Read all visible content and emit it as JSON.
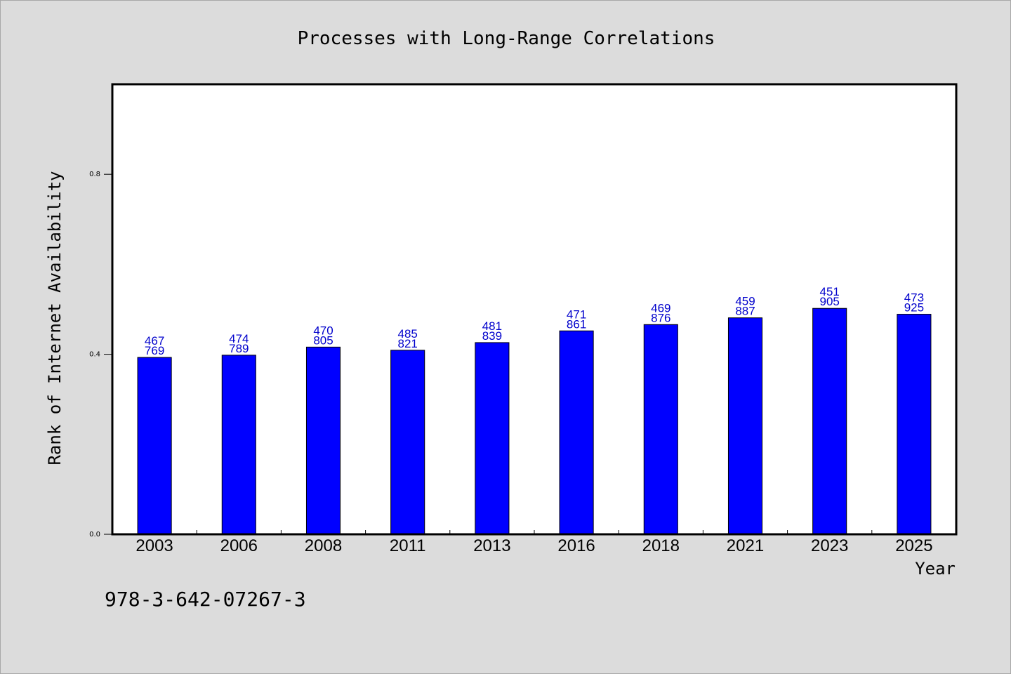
{
  "chart_data": {
    "type": "bar",
    "title": "Processes with Long-Range Correlations",
    "xlabel": "Year",
    "ylabel": "Rank of Internet Availability",
    "categories": [
      "2003",
      "2006",
      "2008",
      "2011",
      "2013",
      "2016",
      "2018",
      "2021",
      "2023",
      "2025"
    ],
    "values": [
      0.393,
      0.398,
      0.416,
      0.409,
      0.426,
      0.452,
      0.466,
      0.481,
      0.502,
      0.489
    ],
    "label_top": [
      "467",
      "474",
      "470",
      "485",
      "481",
      "471",
      "469",
      "459",
      "451",
      "473"
    ],
    "label_bottom": [
      "769",
      "789",
      "805",
      "821",
      "839",
      "861",
      "876",
      "887",
      "905",
      "925"
    ],
    "yticks": [
      0.0,
      0.4,
      0.8
    ],
    "ytick_labels": [
      "0.0",
      "0.4",
      "0.8"
    ],
    "ylim": [
      0.0,
      1.0
    ],
    "bar_color": "#0000ff",
    "label_color": "#0000cc",
    "grid": false,
    "legend": "none"
  },
  "footer": {
    "isbn": "978-3-642-07267-3"
  }
}
